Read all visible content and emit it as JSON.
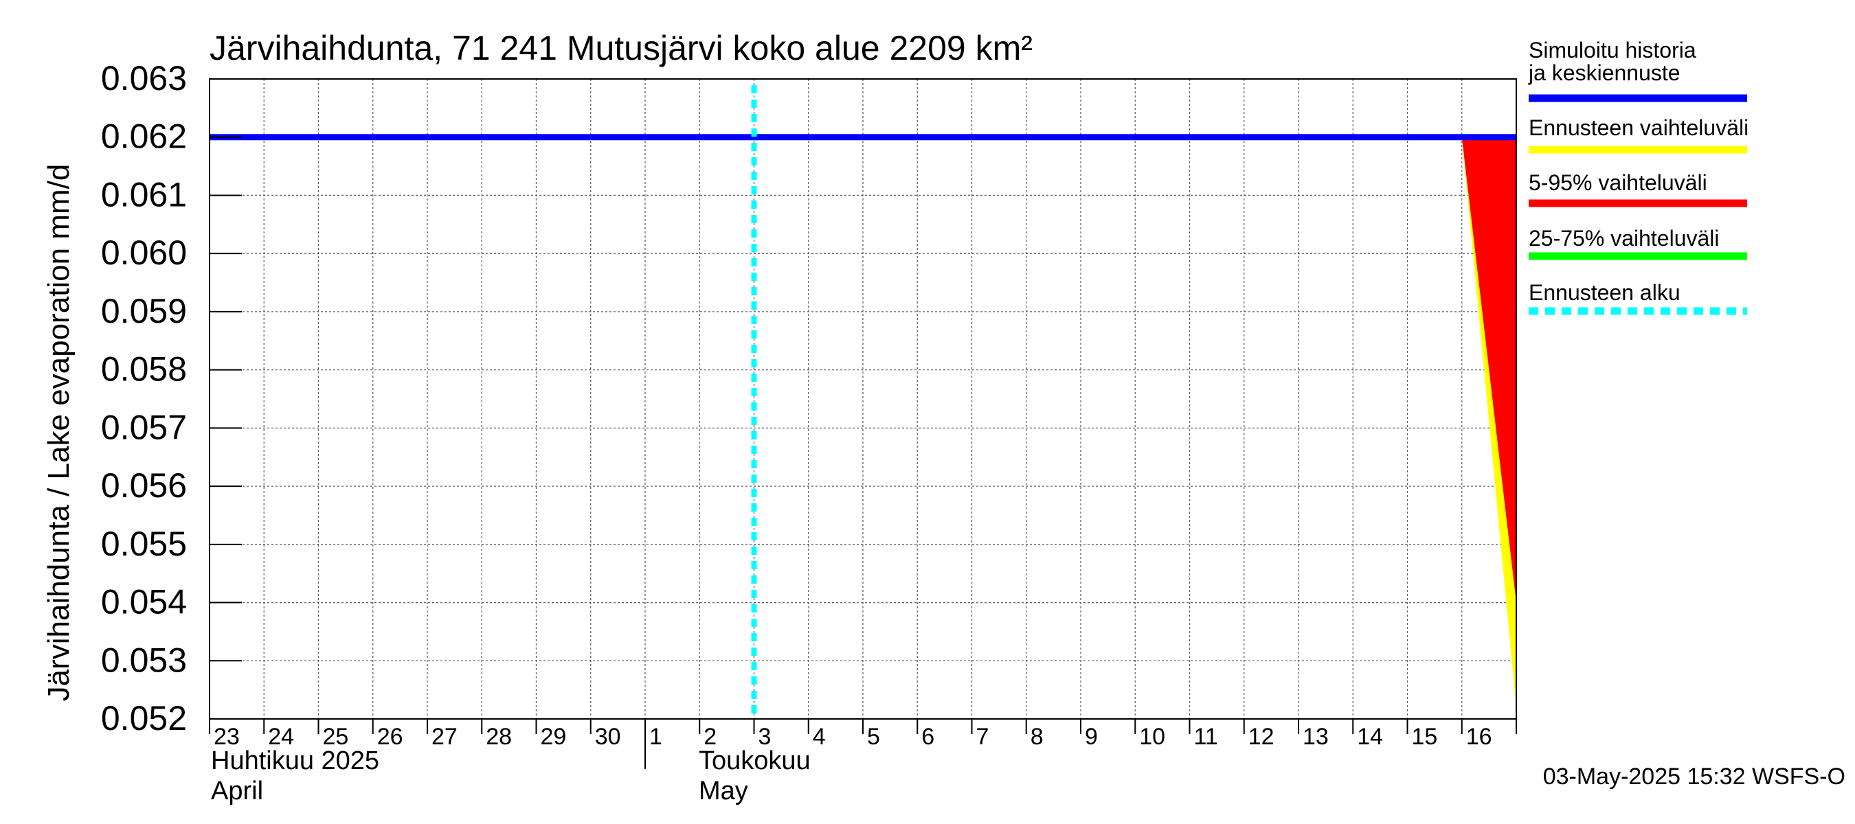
{
  "chart_data": {
    "type": "area",
    "title": "Järvihaihdunta, 71 241 Mutusjärvi koko alue 2209 km²",
    "ylabel": "Järvihaihdunta / Lake evaporation   mm/d",
    "ylim": [
      0.052,
      0.063
    ],
    "y_ticks": [
      "0.052",
      "0.053",
      "0.054",
      "0.055",
      "0.056",
      "0.057",
      "0.058",
      "0.059",
      "0.060",
      "0.061",
      "0.062",
      "0.063"
    ],
    "x_day_labels": [
      "23",
      "24",
      "25",
      "26",
      "27",
      "28",
      "29",
      "30",
      "1",
      "2",
      "3",
      "4",
      "5",
      "6",
      "7",
      "8",
      "9",
      "10",
      "11",
      "12",
      "13",
      "14",
      "15",
      "16"
    ],
    "x_start_day_index": 0,
    "x_end_day_index": 24,
    "month_labels": [
      {
        "fi": "Huhtikuu  2025",
        "en": "April",
        "day_index": 0
      },
      {
        "fi": "Toukokuu",
        "en": "May",
        "day_index": 8
      }
    ],
    "forecast_start_day_index": 10.0,
    "series": [
      {
        "name": "Simuloitu historia ja keskiennuste",
        "color": "#0000ff",
        "x": [
          0,
          24
        ],
        "y": [
          0.062,
          0.062
        ]
      },
      {
        "name": "Ennusteen vaihteluväli",
        "color": "#ffff00",
        "x": [
          23.0,
          24.0
        ],
        "upper": [
          0.062,
          0.062
        ],
        "lower": [
          0.062,
          0.0522
        ]
      },
      {
        "name": "5-95% vaihteluväli",
        "color": "#ff0000",
        "x": [
          23.0,
          24.0
        ],
        "upper": [
          0.062,
          0.062
        ],
        "lower": [
          0.062,
          0.054
        ]
      },
      {
        "name": "25-75% vaihteluväli",
        "color": "#00ff00"
      }
    ],
    "legend": [
      {
        "label": "Simuloitu historia ja keskiennuste",
        "color": "#0000ff",
        "style": "solid"
      },
      {
        "label": "Ennusteen vaihteluväli",
        "color": "#ffff00",
        "style": "solid"
      },
      {
        "label": "5-95% vaihteluväli",
        "color": "#ff0000",
        "style": "solid"
      },
      {
        "label": "25-75% vaihteluväli",
        "color": "#00ff00",
        "style": "solid"
      },
      {
        "label": "Ennusteen alku",
        "color": "#00ffff",
        "style": "dashed"
      }
    ],
    "legend_position": "right",
    "grid": true,
    "footer": "03-May-2025 15:32 WSFS-O"
  }
}
